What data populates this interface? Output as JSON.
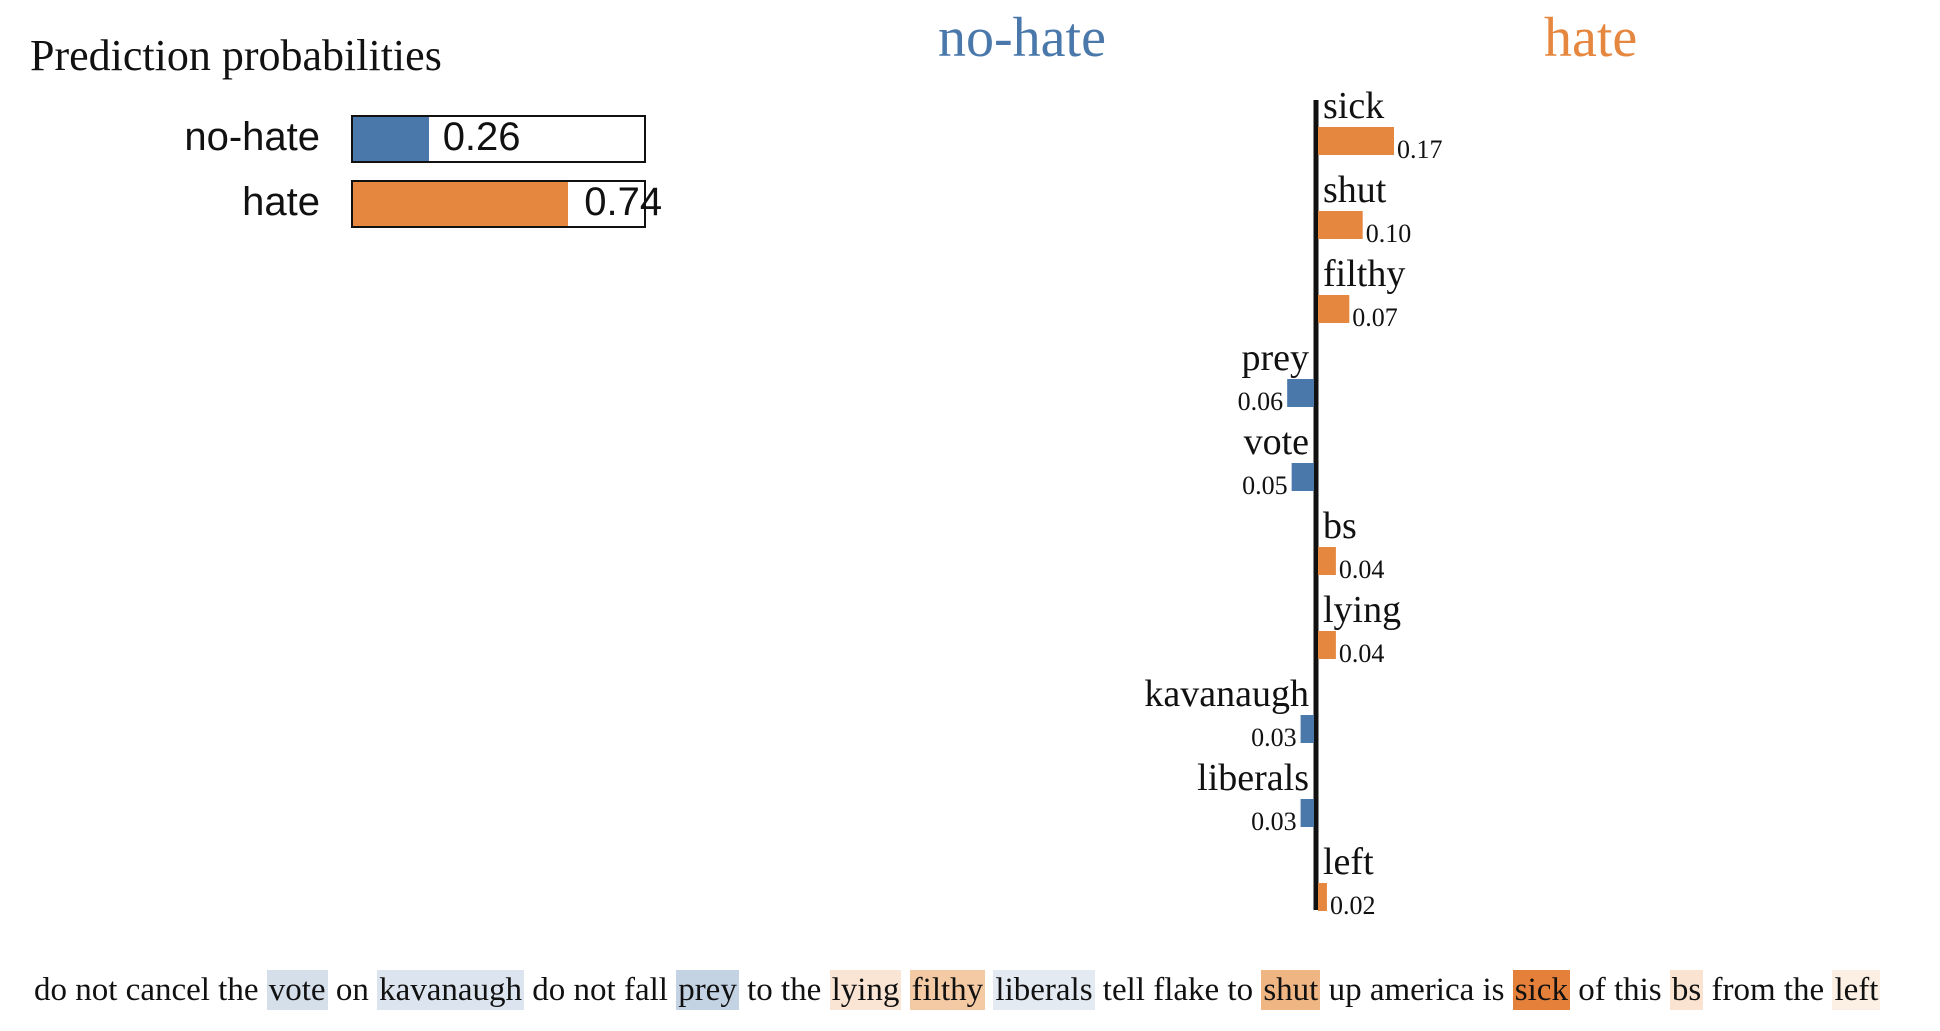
{
  "prediction": {
    "title": "Prediction probabilities",
    "items": [
      {
        "label": "no-hate",
        "value": 0.26,
        "display": "0.26",
        "color": "#4a78ab"
      },
      {
        "label": "hate",
        "value": 0.74,
        "display": "0.74",
        "color": "#e6873f"
      }
    ]
  },
  "headers": {
    "left": {
      "text": "no-hate",
      "color": "#4a78ab"
    },
    "right": {
      "text": "hate",
      "color": "#e6873f"
    }
  },
  "chart_data": {
    "type": "bar",
    "orientation": "horizontal",
    "categories": [
      "sick",
      "shut",
      "filthy",
      "prey",
      "vote",
      "bs",
      "lying",
      "kavanaugh",
      "liberals",
      "left"
    ],
    "values": [
      0.17,
      0.1,
      0.07,
      -0.06,
      -0.05,
      0.04,
      0.04,
      -0.03,
      -0.03,
      0.02
    ],
    "labels": [
      "0.17",
      "0.10",
      "0.07",
      "0.06",
      "0.05",
      "0.04",
      "0.04",
      "0.03",
      "0.03",
      "0.02"
    ],
    "colors": {
      "positive": "#e6873f",
      "negative": "#4a78ab"
    }
  },
  "sentence": {
    "tokens": [
      {
        "text": "do not cancel the ",
        "highlight": null
      },
      {
        "text": "vote",
        "highlight": "#d4dfea"
      },
      {
        "text": " on ",
        "highlight": null
      },
      {
        "text": "kavanaugh",
        "highlight": "#dce5ef"
      },
      {
        "text": " do not fall ",
        "highlight": null
      },
      {
        "text": "prey",
        "highlight": "#c3d3e4"
      },
      {
        "text": " to the ",
        "highlight": null
      },
      {
        "text": "lying",
        "highlight": "#fae5d4"
      },
      {
        "text": " ",
        "highlight": null
      },
      {
        "text": "filthy",
        "highlight": "#f3caa4"
      },
      {
        "text": " ",
        "highlight": null
      },
      {
        "text": "liberals",
        "highlight": "#e3eaf2"
      },
      {
        "text": " tell flake to ",
        "highlight": null
      },
      {
        "text": "shut",
        "highlight": "#efb684"
      },
      {
        "text": " up america is ",
        "highlight": null
      },
      {
        "text": "sick",
        "highlight": "#e5803a"
      },
      {
        "text": " of this ",
        "highlight": null
      },
      {
        "text": "bs",
        "highlight": "#fae3d0"
      },
      {
        "text": " from the ",
        "highlight": null
      },
      {
        "text": "left",
        "highlight": "#fcefe4"
      }
    ]
  }
}
